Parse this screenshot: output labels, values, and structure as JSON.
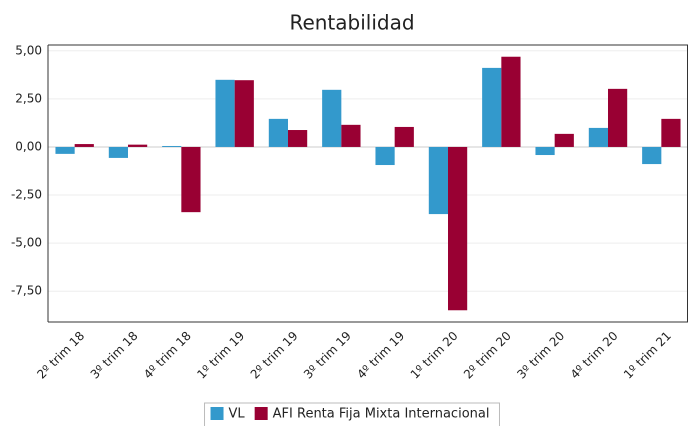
{
  "chart_data": {
    "type": "bar",
    "title": "Rentabilidad",
    "categories": [
      "2º trim 18",
      "3º trim 18",
      "4º trim 18",
      "1º trim 19",
      "2º trim 19",
      "3º trim 19",
      "4º trim 19",
      "1º trim 20",
      "2º trim 20",
      "3º trim 20",
      "4º trim 20",
      "1º trim 21"
    ],
    "series": [
      {
        "name": "VL",
        "color": "#3399cc",
        "values": [
          -0.36,
          -0.57,
          0.05,
          3.49,
          1.46,
          2.97,
          -0.94,
          -3.49,
          4.11,
          -0.42,
          0.99,
          -0.89
        ]
      },
      {
        "name": "AFI Renta Fija Mixta Internacional",
        "color": "#990033",
        "values": [
          0.15,
          0.12,
          -3.39,
          3.47,
          0.88,
          1.15,
          1.04,
          -8.49,
          4.69,
          0.68,
          3.02,
          1.46
        ]
      }
    ],
    "ylim": [
      -9.1,
      5.3
    ],
    "yticks": [
      {
        "value": 5,
        "label": "5,00"
      },
      {
        "value": 2.5,
        "label": "2,50"
      },
      {
        "value": 0,
        "label": "0,00"
      },
      {
        "value": -2.5,
        "label": "-2,50"
      },
      {
        "value": -5,
        "label": "-5,00"
      },
      {
        "value": -7.5,
        "label": "-7,50"
      }
    ],
    "grid": true,
    "legend": "bottom"
  }
}
